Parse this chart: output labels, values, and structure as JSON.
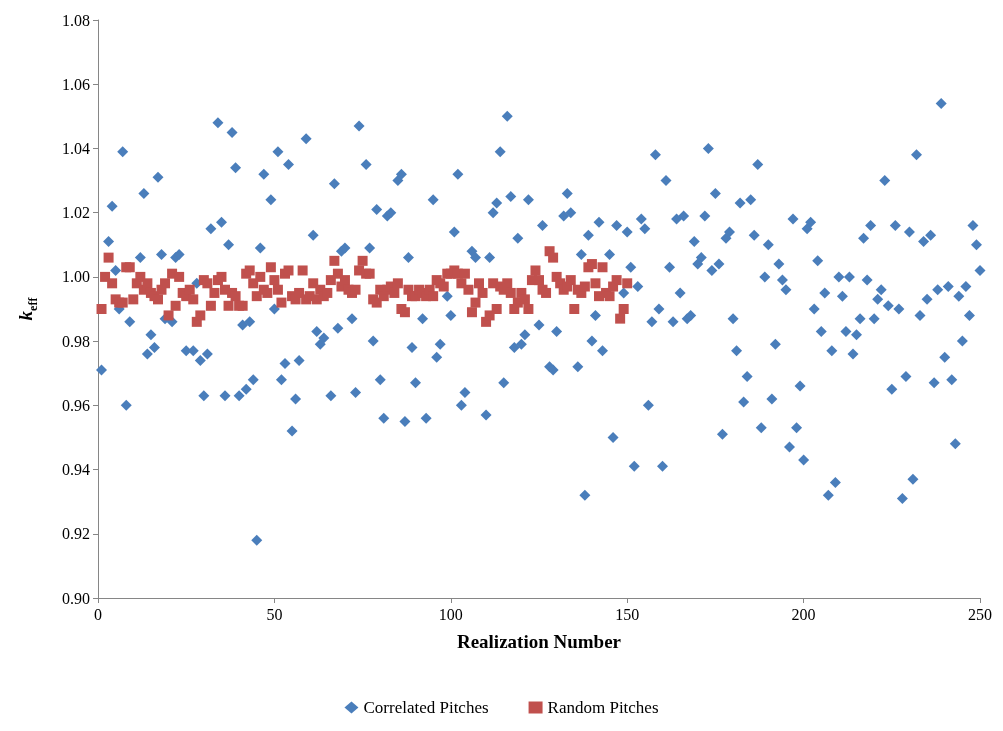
{
  "chart_data": {
    "type": "scatter",
    "xlabel": "Realization Number",
    "ylabel": "k$_{eff}$",
    "xlim": [
      0,
      250
    ],
    "xticks": [
      0,
      50,
      100,
      150,
      200,
      250
    ],
    "ylim": [
      0.9,
      1.08
    ],
    "yticks": [
      {
        "value": 0.9,
        "label": "0.90"
      },
      {
        "value": 0.92,
        "label": "0.92"
      },
      {
        "value": 0.94,
        "label": "0.94"
      },
      {
        "value": 0.96,
        "label": "0.96"
      },
      {
        "value": 0.98,
        "label": "0.98"
      },
      {
        "value": 1.0,
        "label": "1.00"
      },
      {
        "value": 1.02,
        "label": "1.02"
      },
      {
        "value": 1.04,
        "label": "1.04"
      },
      {
        "value": 1.06,
        "label": "1.06"
      },
      {
        "value": 1.08,
        "label": "1.08"
      }
    ],
    "grid": false,
    "legend": "bottom",
    "series": [
      {
        "name": "Correlated Pitches",
        "color": "#4a7ebb",
        "marker": "diamond",
        "x": [
          1,
          3,
          4,
          5,
          6,
          7,
          8,
          9,
          12,
          13,
          14,
          15,
          16,
          17,
          18,
          19,
          21,
          22,
          23,
          25,
          27,
          28,
          29,
          30,
          31,
          32,
          34,
          35,
          36,
          37,
          38,
          39,
          40,
          41,
          42,
          43,
          44,
          45,
          46,
          47,
          49,
          50,
          51,
          52,
          53,
          54,
          55,
          56,
          57,
          59,
          61,
          62,
          63,
          64,
          66,
          67,
          68,
          69,
          70,
          72,
          73,
          74,
          76,
          77,
          78,
          79,
          80,
          81,
          82,
          83,
          85,
          86,
          87,
          88,
          89,
          90,
          92,
          93,
          95,
          96,
          97,
          99,
          100,
          101,
          102,
          103,
          104,
          106,
          107,
          108,
          110,
          111,
          112,
          113,
          114,
          115,
          116,
          117,
          118,
          119,
          120,
          121,
          122,
          124,
          125,
          126,
          128,
          129,
          130,
          132,
          133,
          134,
          136,
          137,
          138,
          139,
          140,
          141,
          142,
          143,
          145,
          146,
          147,
          149,
          150,
          151,
          152,
          153,
          154,
          155,
          156,
          157,
          158,
          159,
          160,
          161,
          162,
          163,
          164,
          165,
          166,
          167,
          168,
          169,
          170,
          171,
          172,
          173,
          174,
          175,
          176,
          177,
          178,
          179,
          180,
          181,
          182,
          183,
          184,
          185,
          186,
          187,
          188,
          189,
          190,
          191,
          192,
          193,
          194,
          195,
          196,
          197,
          198,
          199,
          200,
          201,
          202,
          203,
          204,
          205,
          206,
          207,
          208,
          209,
          210,
          211,
          212,
          213,
          214,
          215,
          216,
          217,
          218,
          219,
          220,
          221,
          222,
          223,
          224,
          225,
          226,
          227,
          228,
          229,
          230,
          231,
          232,
          233,
          234,
          235,
          236,
          237,
          238,
          239,
          240,
          241,
          242,
          243,
          244,
          245,
          246,
          247,
          248,
          249,
          250
        ],
        "values": [
          0.971,
          1.011,
          1.022,
          1.002,
          0.99,
          1.039,
          0.96,
          0.986,
          1.006,
          1.026,
          0.976,
          0.982,
          0.978,
          1.031,
          1.007,
          0.987,
          0.986,
          1.006,
          1.007,
          0.977,
          0.977,
          0.998,
          0.974,
          0.963,
          0.976,
          1.015,
          1.048,
          1.017,
          0.963,
          1.01,
          1.045,
          1.034,
          0.963,
          0.985,
          0.965,
          0.986,
          0.968,
          0.918,
          1.009,
          1.032,
          1.024,
          0.99,
          1.039,
          0.968,
          0.973,
          1.035,
          0.952,
          0.962,
          0.974,
          1.043,
          1.013,
          0.983,
          0.979,
          0.981,
          0.963,
          1.029,
          0.984,
          1.008,
          1.009,
          0.987,
          0.964,
          1.047,
          1.035,
          1.009,
          0.98,
          1.021,
          0.968,
          0.956,
          1.019,
          1.02,
          1.03,
          1.032,
          0.955,
          1.006,
          0.978,
          0.967,
          0.987,
          0.956,
          1.024,
          0.975,
          0.979,
          0.994,
          0.988,
          1.014,
          1.032,
          0.96,
          0.964,
          1.008,
          1.006,
          null,
          0.957,
          1.006,
          1.02,
          1.023,
          1.039,
          0.967,
          1.05,
          1.025,
          0.978,
          1.012,
          0.979,
          0.982,
          1.024,
          null,
          0.985,
          1.016,
          0.972,
          0.971,
          0.983,
          1.019,
          1.026,
          1.02,
          0.972,
          1.007,
          0.932,
          1.013,
          0.98,
          0.988,
          1.017,
          0.977,
          1.007,
          0.95,
          1.016,
          0.995,
          1.014,
          1.003,
          0.941,
          0.997,
          1.018,
          1.015,
          0.96,
          0.986,
          1.038,
          0.99,
          0.941,
          1.03,
          1.003,
          0.986,
          1.018,
          0.995,
          1.019,
          0.987,
          0.988,
          1.011,
          1.004,
          1.006,
          1.019,
          1.04,
          1.002,
          1.026,
          1.004,
          0.951,
          1.012,
          1.014,
          0.987,
          0.977,
          1.023,
          0.961,
          0.969,
          1.024,
          1.013,
          1.035,
          0.953,
          1.0,
          1.01,
          0.962,
          0.979,
          1.004,
          0.999,
          0.996,
          0.947,
          1.018,
          0.953,
          0.966,
          0.943,
          1.015,
          1.017,
          0.99,
          1.005,
          0.983,
          0.995,
          0.932,
          0.977,
          0.936,
          1.0,
          0.994,
          0.983,
          1.0,
          0.976,
          0.982,
          0.987,
          1.012,
          0.999,
          1.016,
          0.987,
          0.993,
          0.996,
          1.03,
          0.991,
          0.965,
          1.016,
          0.99,
          0.931,
          0.969,
          1.014,
          0.937,
          1.038,
          0.988,
          1.011,
          0.993,
          1.013,
          0.967,
          0.996,
          1.054,
          0.975,
          0.997,
          0.968,
          0.948,
          0.994,
          0.98,
          0.997,
          0.988,
          1.016,
          1.01,
          1.002
        ]
      },
      {
        "name": "Random Pitches",
        "color": "#c0504d",
        "marker": "square",
        "x": [
          1,
          2,
          3,
          4,
          5,
          6,
          7,
          8,
          9,
          10,
          11,
          12,
          13,
          14,
          15,
          16,
          17,
          18,
          19,
          20,
          21,
          22,
          23,
          24,
          25,
          26,
          27,
          28,
          29,
          30,
          31,
          32,
          33,
          34,
          35,
          36,
          37,
          38,
          39,
          40,
          41,
          42,
          43,
          44,
          45,
          46,
          47,
          48,
          49,
          50,
          51,
          52,
          53,
          54,
          55,
          56,
          57,
          58,
          59,
          60,
          61,
          62,
          63,
          64,
          65,
          66,
          67,
          68,
          69,
          70,
          71,
          72,
          73,
          74,
          75,
          76,
          77,
          78,
          79,
          80,
          81,
          82,
          83,
          84,
          85,
          86,
          87,
          88,
          89,
          90,
          91,
          92,
          93,
          94,
          95,
          96,
          97,
          98,
          99,
          100,
          101,
          102,
          103,
          104,
          105,
          106,
          107,
          108,
          109,
          110,
          111,
          112,
          113,
          114,
          115,
          116,
          117,
          118,
          119,
          120,
          121,
          122,
          123,
          124,
          125,
          126,
          127,
          128,
          129,
          130,
          131,
          132,
          133,
          134,
          135,
          136,
          137,
          138,
          139,
          140,
          141,
          142,
          143,
          144,
          145,
          146,
          147,
          148,
          149,
          150
        ],
        "values": [
          0.99,
          1.0,
          1.006,
          0.998,
          0.993,
          0.992,
          0.992,
          1.003,
          1.003,
          0.993,
          0.998,
          1.0,
          0.996,
          0.998,
          0.995,
          0.994,
          0.993,
          0.996,
          0.998,
          0.988,
          1.001,
          0.991,
          1.0,
          0.995,
          0.994,
          0.996,
          0.993,
          0.986,
          0.988,
          0.999,
          0.998,
          0.991,
          0.995,
          0.999,
          1.0,
          0.996,
          0.991,
          0.995,
          0.994,
          0.991,
          0.991,
          1.001,
          1.002,
          0.998,
          0.994,
          1.0,
          0.996,
          0.995,
          1.003,
          0.999,
          0.996,
          0.992,
          1.001,
          1.002,
          0.994,
          0.993,
          0.995,
          1.002,
          0.993,
          0.994,
          0.998,
          0.993,
          0.996,
          0.994,
          0.995,
          0.999,
          1.005,
          1.001,
          0.997,
          0.999,
          0.996,
          0.995,
          0.996,
          1.002,
          1.005,
          1.001,
          1.001,
          0.993,
          0.992,
          0.996,
          0.994,
          0.996,
          0.997,
          0.995,
          0.998,
          0.99,
          0.989,
          0.996,
          0.994,
          0.994,
          0.996,
          0.995,
          0.994,
          0.996,
          0.994,
          0.999,
          0.998,
          0.997,
          1.001,
          1.001,
          1.002,
          1.001,
          0.998,
          1.001,
          0.996,
          0.989,
          0.992,
          0.998,
          0.995,
          0.986,
          0.988,
          0.998,
          0.99,
          0.997,
          0.996,
          0.998,
          0.995,
          0.99,
          0.992,
          0.995,
          0.993,
          0.99,
          0.999,
          1.002,
          0.999,
          0.996,
          0.995,
          1.008,
          1.006,
          1.0,
          0.998,
          0.996,
          0.997,
          0.999,
          0.99,
          0.996,
          0.995,
          0.997,
          1.003,
          1.004,
          0.998,
          0.994,
          1.003,
          0.995,
          0.994,
          0.997,
          0.999,
          0.987,
          0.99,
          0.998
        ]
      }
    ]
  }
}
